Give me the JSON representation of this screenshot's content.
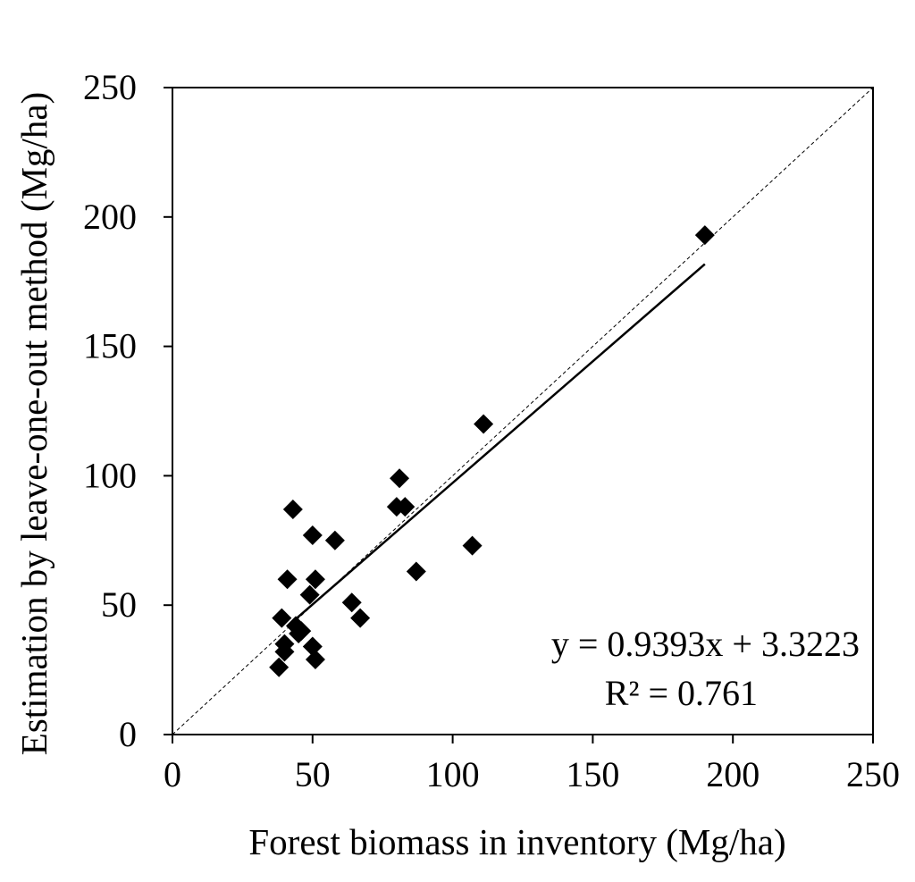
{
  "chart_data": {
    "type": "scatter",
    "title": "",
    "xlabel": "Forest biomass in inventory (Mg/ha)",
    "ylabel": "Estimation by leave-one-out method (Mg/ha)",
    "xlim": [
      0,
      250
    ],
    "ylim": [
      0,
      250
    ],
    "xticks": [
      "0",
      "50",
      "100",
      "150",
      "200",
      "250"
    ],
    "yticks": [
      "0",
      "50",
      "100",
      "150",
      "200",
      "250"
    ],
    "grid": false,
    "legend": "none",
    "marker": "diamond",
    "marker_color": "#000000",
    "points": [
      {
        "x": 38,
        "y": 26
      },
      {
        "x": 40,
        "y": 32
      },
      {
        "x": 40,
        "y": 35
      },
      {
        "x": 39,
        "y": 45
      },
      {
        "x": 41,
        "y": 60
      },
      {
        "x": 44,
        "y": 42
      },
      {
        "x": 45,
        "y": 39
      },
      {
        "x": 46,
        "y": 40
      },
      {
        "x": 43,
        "y": 87
      },
      {
        "x": 49,
        "y": 54
      },
      {
        "x": 50,
        "y": 77
      },
      {
        "x": 51,
        "y": 60
      },
      {
        "x": 50,
        "y": 34
      },
      {
        "x": 51,
        "y": 29
      },
      {
        "x": 58,
        "y": 75
      },
      {
        "x": 64,
        "y": 51
      },
      {
        "x": 67,
        "y": 45
      },
      {
        "x": 80,
        "y": 88
      },
      {
        "x": 81,
        "y": 99
      },
      {
        "x": 83,
        "y": 88
      },
      {
        "x": 87,
        "y": 63
      },
      {
        "x": 107,
        "y": 73
      },
      {
        "x": 111,
        "y": 120
      },
      {
        "x": 190,
        "y": 193
      }
    ],
    "fit_line": {
      "slope": 0.9393,
      "intercept": 3.3223,
      "x_range": [
        43,
        190
      ],
      "style": "solid"
    },
    "reference_line": {
      "label": "",
      "x_range": [
        0,
        250
      ],
      "style": "dashed"
    },
    "annotations": {
      "equation": "y = 0.9393x + 3.3223",
      "r_squared": "R² = 0.761"
    }
  }
}
